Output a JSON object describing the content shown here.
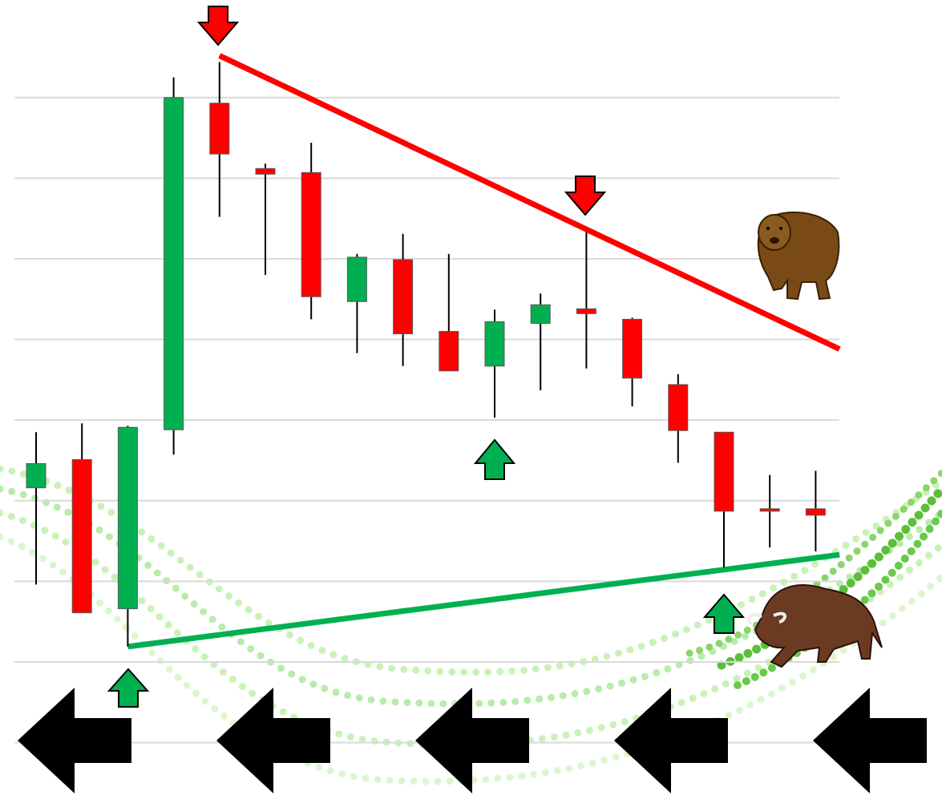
{
  "chart_data": {
    "type": "candlestick",
    "categories": [
      null,
      null,
      null,
      null,
      null,
      null,
      null,
      null,
      null,
      null,
      null,
      null,
      null,
      null,
      null,
      null,
      null,
      null
    ],
    "open": [
      3.16,
      3.51,
      1.66,
      3.88,
      7.93,
      7.12,
      7.07,
      5.47,
      5.99,
      5.1,
      4.67,
      5.2,
      5.38,
      5.25,
      4.44,
      3.85,
      2.9,
      2.9
    ],
    "high": [
      3.85,
      3.96,
      3.93,
      8.25,
      8.44,
      7.18,
      7.44,
      6.06,
      6.31,
      6.06,
      5.37,
      5.57,
      6.33,
      5.27,
      4.57,
      3.85,
      3.32,
      3.37
    ],
    "low": [
      1.96,
      1.61,
      1.19,
      3.57,
      6.52,
      5.8,
      5.25,
      4.83,
      4.67,
      4.61,
      4.03,
      4.37,
      4.64,
      4.17,
      3.47,
      2.17,
      2.42,
      2.37
    ],
    "close": [
      3.46,
      1.61,
      3.91,
      8.0,
      7.3,
      7.05,
      5.53,
      6.02,
      5.07,
      4.61,
      5.22,
      5.43,
      5.32,
      4.52,
      3.87,
      2.87,
      2.87,
      2.82
    ],
    "up_color": "#00b050",
    "down_color": "#ff0000",
    "ylim": [
      -0.65,
      9.21
    ],
    "yticks": [
      0,
      1,
      2,
      3,
      4,
      5,
      6,
      7,
      8
    ],
    "grid": true,
    "trendlines": [
      {
        "name": "resistance",
        "color": "#ff0000",
        "x": [
          4,
          17.52
        ],
        "values": [
          8.52,
          4.88
        ]
      },
      {
        "name": "support",
        "color": "#00b050",
        "x": [
          2,
          17.52
        ],
        "values": [
          1.19,
          2.33
        ]
      }
    ]
  }
}
